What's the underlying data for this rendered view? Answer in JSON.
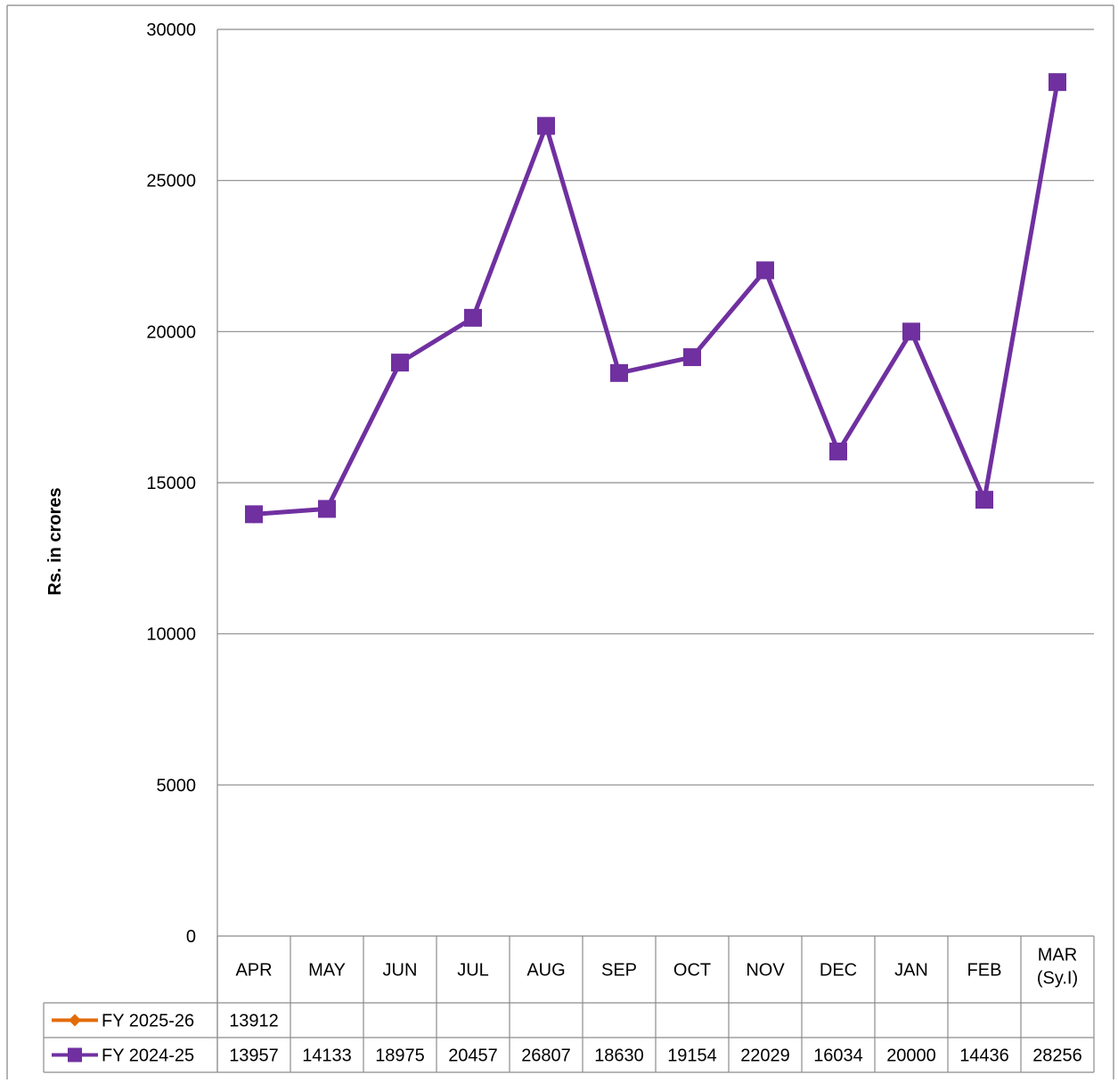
{
  "chart_data": {
    "type": "line",
    "title": "",
    "xlabel": "",
    "ylabel": "Rs. in crores",
    "ylim": [
      0,
      30000
    ],
    "yticks": [
      0,
      5000,
      10000,
      15000,
      20000,
      25000,
      30000
    ],
    "grid": true,
    "legend_placement": "data-table-bottom",
    "categories": [
      "APR",
      "MAY",
      "JUN",
      "JUL",
      "AUG",
      "SEP",
      "OCT",
      "NOV",
      "DEC",
      "JAN",
      "FEB",
      "MAR\n(Sy.I)"
    ],
    "series": [
      {
        "name": "FY 2025-26",
        "color": "#E36C0A",
        "marker": "diamond",
        "values": [
          13912,
          null,
          null,
          null,
          null,
          null,
          null,
          null,
          null,
          null,
          null,
          null
        ]
      },
      {
        "name": "FY 2024-25",
        "color": "#7030A0",
        "marker": "square",
        "values": [
          13957,
          14133,
          18975,
          20457,
          26807,
          18630,
          19154,
          22029,
          16034,
          20000,
          14436,
          28256
        ]
      }
    ]
  }
}
